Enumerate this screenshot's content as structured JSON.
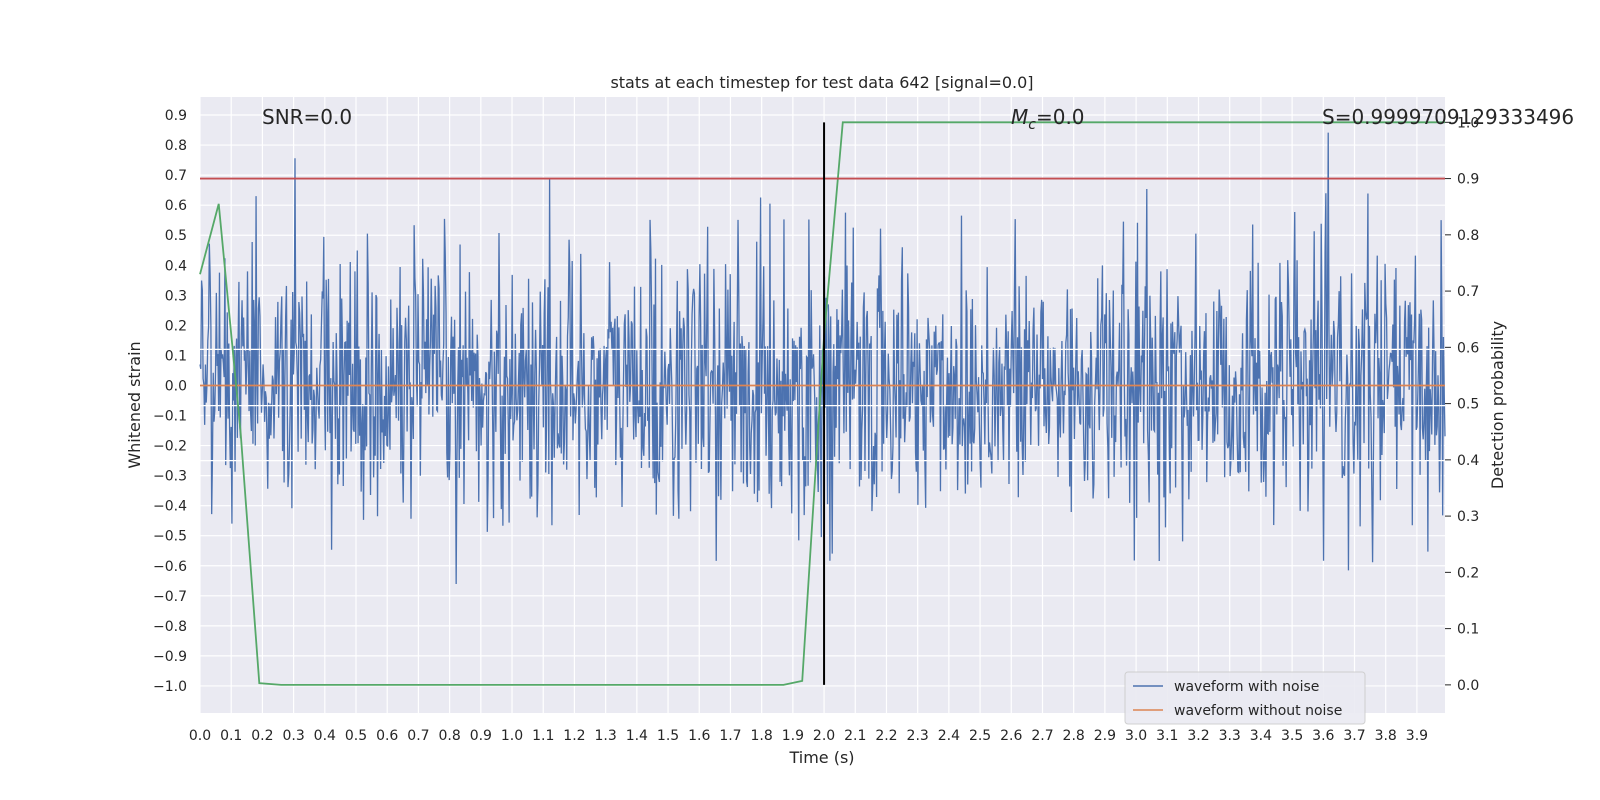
{
  "chart_data": {
    "type": "line",
    "title": "stats at each timestep for test data 642 [signal=0.0]",
    "xlabel": "Time (s)",
    "ylabel": "Whitened strain",
    "y2label": "Detection probability",
    "xlim": [
      0.0,
      3.99
    ],
    "ylim": [
      -1.09,
      0.96
    ],
    "y2lim": [
      -0.05,
      1.045
    ],
    "x_ticks": [
      "0.0",
      "0.1",
      "0.2",
      "0.3",
      "0.4",
      "0.5",
      "0.6",
      "0.7",
      "0.8",
      "0.9",
      "1.0",
      "1.1",
      "1.2",
      "1.3",
      "1.4",
      "1.5",
      "1.6",
      "1.7",
      "1.8",
      "1.9",
      "2.0",
      "2.1",
      "2.2",
      "2.3",
      "2.4",
      "2.5",
      "2.6",
      "2.7",
      "2.8",
      "2.9",
      "3.0",
      "3.1",
      "3.2",
      "3.3",
      "3.4",
      "3.5",
      "3.6",
      "3.7",
      "3.8",
      "3.9"
    ],
    "y_ticks": [
      "0.9",
      "0.8",
      "0.7",
      "0.6",
      "0.5",
      "0.4",
      "0.3",
      "0.2",
      "0.1",
      "0.0",
      "−0.1",
      "−0.2",
      "−0.3",
      "−0.4",
      "−0.5",
      "−0.6",
      "−0.7",
      "−0.8",
      "−0.9",
      "−1.0"
    ],
    "y2_ticks": [
      "1.0",
      "0.9",
      "0.8",
      "0.7",
      "0.6",
      "0.5",
      "0.4",
      "0.3",
      "0.2",
      "0.1",
      "0.0"
    ],
    "grid": true,
    "legend": {
      "position": "bottom-right",
      "entries": [
        {
          "label": "waveform with noise",
          "color": "#4c72b0"
        },
        {
          "label": "waveform without noise",
          "color": "#dd8452"
        }
      ]
    },
    "annotations": {
      "snr": "SNR=0.0",
      "mc_symbol": "M",
      "mc_sub": "c",
      "mc_value": "=0.0",
      "s_value": "S=0.9999709129333496"
    },
    "series": [
      {
        "name": "waveform with noise",
        "color": "#4c72b0",
        "axis": "left",
        "noise_std": 0.22,
        "x_range": [
          0.0,
          3.99
        ],
        "n_samples": 1600
      },
      {
        "name": "waveform without noise",
        "color": "#dd8452",
        "axis": "left",
        "x": [
          0.0,
          3.99
        ],
        "y": [
          0.0,
          0.0
        ]
      },
      {
        "color": "#55a868",
        "axis": "right",
        "x": [
          0.0,
          0.06,
          0.13,
          0.19,
          0.26,
          1.87,
          1.93,
          2.0,
          2.06,
          3.99
        ],
        "y": [
          0.73,
          0.855,
          0.45,
          0.003,
          0.0,
          0.0,
          0.007,
          0.62,
          1.0,
          1.0
        ]
      },
      {
        "color": "#c44e52",
        "axis": "right",
        "x": [
          0.0,
          3.99
        ],
        "y": [
          0.9,
          0.9
        ]
      },
      {
        "color": "#000000",
        "axis": "right",
        "x": [
          2.0,
          2.0
        ],
        "y": [
          0.0,
          1.0
        ]
      }
    ]
  }
}
